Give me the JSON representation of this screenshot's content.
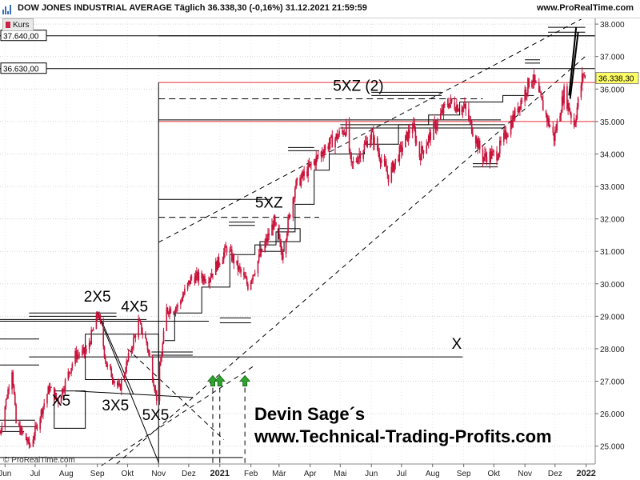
{
  "header": {
    "title": "DOW JONES INDUSTRIAL AVERAGE Täglich 36.338,30 (-0,16%) 31.12.2021 21:59:59",
    "url": "www.ProRealTime.com",
    "series_tab": "Kurs"
  },
  "footer": {
    "credit": "© ProRealTime.com"
  },
  "signature": {
    "name": "Devin Sage´s",
    "url": "www.Technical-Trading-Profits.com"
  },
  "colors": {
    "candles": "#c8123a",
    "level_line": "#e8323c",
    "price_badge": "#ffff66",
    "annotation": "#000000"
  },
  "chart_data": {
    "type": "candlestick",
    "ylim": [
      24450,
      38200
    ],
    "y_ticks": [
      25000,
      26000,
      27000,
      28000,
      29000,
      30000,
      31000,
      32000,
      33000,
      34000,
      35000,
      36000,
      37000,
      38000
    ],
    "y_tick_labels": [
      "25.000",
      "26.000",
      "27.000",
      "28.000",
      "29.000",
      "30.000",
      "31.000",
      "32.000",
      "33.000",
      "34.000",
      "35.000",
      "36.000",
      "37.000",
      "38.000"
    ],
    "x_ticks": [
      "2020-06-01",
      "2020-07-01",
      "2020-08-01",
      "2020-09-01",
      "2020-10-01",
      "2020-11-01",
      "2020-12-01",
      "2021-01-01",
      "2021-02-01",
      "2021-03-01",
      "2021-04-01",
      "2021-05-01",
      "2021-06-01",
      "2021-07-01",
      "2021-08-01",
      "2021-09-01",
      "2021-10-01",
      "2021-11-01",
      "2021-12-01",
      "2022-01-01"
    ],
    "x_tick_labels": [
      "Jun",
      "Jul",
      "Aug",
      "Sep",
      "Okt",
      "Nov",
      "Dez",
      "2021",
      "Feb",
      "Mär",
      "Apr",
      "Mai",
      "Jun",
      "Jul",
      "Aug",
      "Sep",
      "Okt",
      "Nov",
      "Dez",
      "2022"
    ],
    "xlim": [
      "2020-05-27",
      "2022-01-10"
    ],
    "close_points": [
      [
        "2020-05-27",
        25400
      ],
      [
        "2020-06-08",
        27400
      ],
      [
        "2020-06-12",
        25700
      ],
      [
        "2020-06-26",
        25000
      ],
      [
        "2020-07-15",
        26800
      ],
      [
        "2020-07-24",
        26400
      ],
      [
        "2020-08-10",
        27800
      ],
      [
        "2020-08-21",
        27900
      ],
      [
        "2020-09-02",
        29100
      ],
      [
        "2020-09-10",
        27500
      ],
      [
        "2020-09-23",
        26750
      ],
      [
        "2020-10-12",
        28800
      ],
      [
        "2020-10-20",
        28200
      ],
      [
        "2020-10-30",
        26500
      ],
      [
        "2020-11-09",
        29200
      ],
      [
        "2020-11-20",
        29300
      ],
      [
        "2020-12-04",
        30200
      ],
      [
        "2020-12-21",
        30200
      ],
      [
        "2021-01-08",
        31100
      ],
      [
        "2021-01-29",
        29950
      ],
      [
        "2021-02-24",
        31900
      ],
      [
        "2021-03-04",
        30900
      ],
      [
        "2021-03-17",
        33000
      ],
      [
        "2021-04-16",
        34200
      ],
      [
        "2021-05-07",
        34800
      ],
      [
        "2021-05-12",
        33600
      ],
      [
        "2021-06-01",
        34600
      ],
      [
        "2021-06-18",
        33300
      ],
      [
        "2021-07-12",
        34900
      ],
      [
        "2021-07-19",
        33950
      ],
      [
        "2021-08-16",
        35600
      ],
      [
        "2021-09-02",
        35400
      ],
      [
        "2021-09-20",
        33900
      ],
      [
        "2021-10-04",
        34000
      ],
      [
        "2021-11-08",
        36400
      ],
      [
        "2021-11-30",
        34500
      ],
      [
        "2021-12-10",
        35900
      ],
      [
        "2021-12-20",
        34900
      ],
      [
        "2021-12-29",
        36500
      ],
      [
        "2021-12-31",
        36338.3
      ]
    ],
    "last_price_label": "36.338,30",
    "price_labels": [
      {
        "value": 37640,
        "label": "37.640,00"
      },
      {
        "value": 36630,
        "label": "36.630,00"
      }
    ],
    "annotations": [
      {
        "text": "2X5",
        "date": "2020-09-01",
        "value": 29450
      },
      {
        "text": "4X5",
        "date": "2020-10-08",
        "value": 29150
      },
      {
        "text": "X5",
        "date": "2020-07-27",
        "value": 26250
      },
      {
        "text": "3X5",
        "date": "2020-09-19",
        "value": 26100
      },
      {
        "text": "5X5",
        "date": "2020-10-29",
        "value": 25800
      },
      {
        "text": "5XZ",
        "date": "2021-02-19",
        "value": 32350
      },
      {
        "text": "5XZ (2)",
        "date": "2021-05-19",
        "value": 35950
      },
      {
        "text": "X",
        "date": "2021-08-25",
        "value": 28000
      }
    ]
  }
}
